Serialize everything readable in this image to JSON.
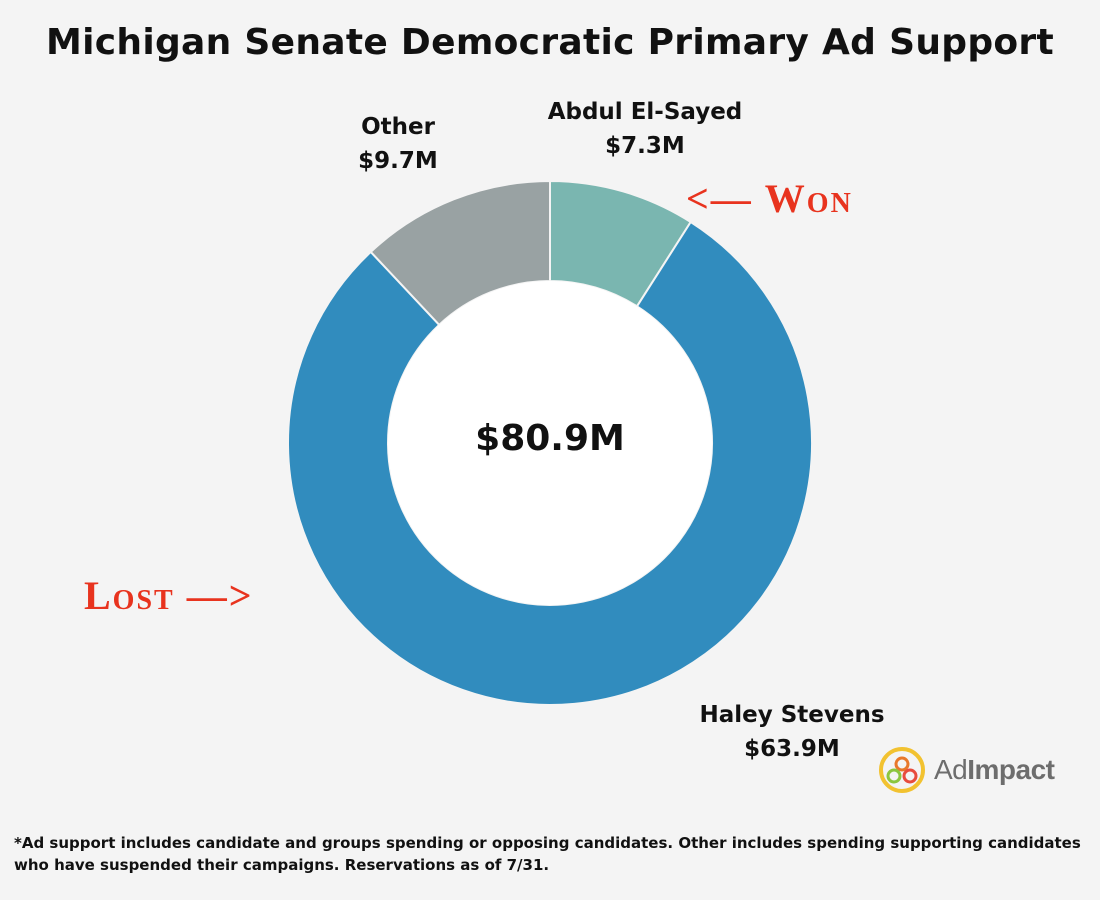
{
  "chart_data": {
    "type": "pie",
    "title": "Michigan Senate Democratic Primary Ad Support",
    "center_label": "$80.9M",
    "slices": [
      {
        "name": "Abdul El-Sayed",
        "value": 7.3,
        "value_label": "$7.3M",
        "color": "#7ab6b0"
      },
      {
        "name": "Haley Stevens",
        "value": 63.9,
        "value_label": "$63.9M",
        "color": "#318cbe"
      },
      {
        "name": "Other",
        "value": 9.7,
        "value_label": "$9.7M",
        "color": "#99a2a3"
      }
    ]
  },
  "annotations": {
    "won": {
      "arrow": "<—",
      "text": "Won"
    },
    "lost": {
      "text": "Lost",
      "arrow": "—>"
    }
  },
  "annotation_color": "#e8331e",
  "footnote": {
    "line1": "*Ad support includes candidate and groups spending or opposing candidates. Other includes spending supporting candidates",
    "line2": "who have suspended their campaigns. Reservations as of 7/31."
  },
  "logo": {
    "name_regular": "Ad",
    "name_bold": "Impact",
    "icon": "adimpact-logo-icon"
  }
}
